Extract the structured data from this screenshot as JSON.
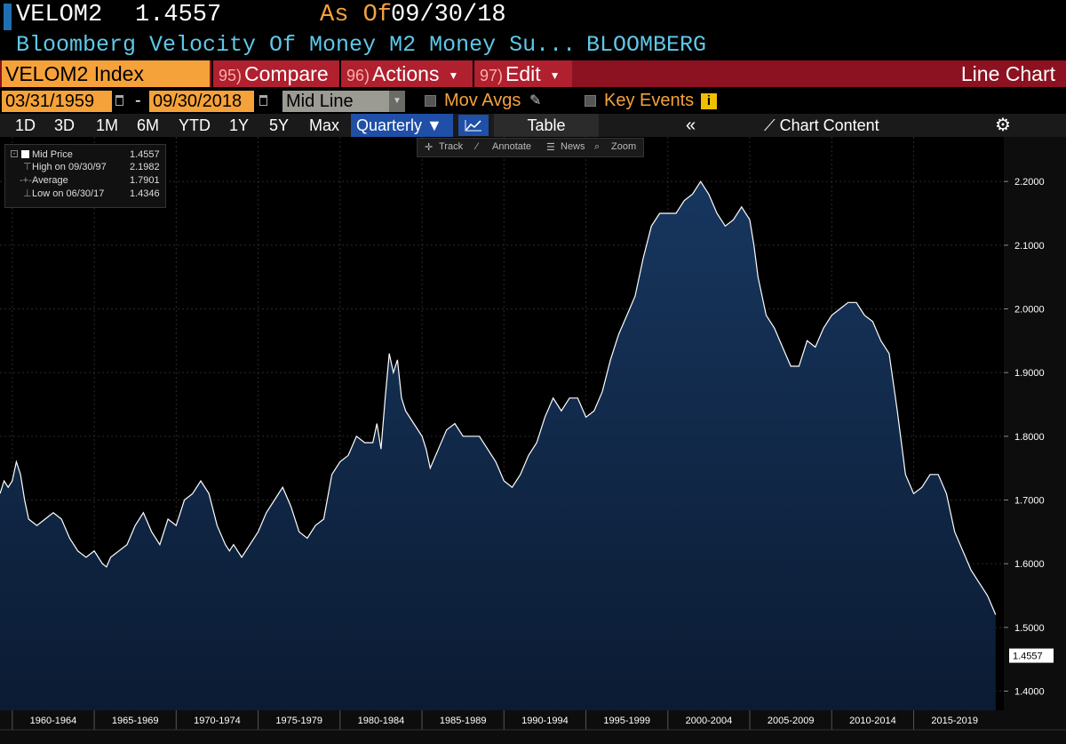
{
  "header": {
    "ticker": "VELOM2",
    "price": "1.4557",
    "as_of_label": "As Of",
    "as_of_date": "09/30/18",
    "name": "Bloomberg Velocity Of Money M2 Money Su...",
    "source": "BLOOMBERG"
  },
  "menu": {
    "security": "VELOM2 Index",
    "compare_num": "95)",
    "compare_label": "Compare",
    "actions_num": "96)",
    "actions_label": "Actions",
    "edit_num": "97)",
    "edit_label": "Edit",
    "view_label": "Line Chart"
  },
  "range": {
    "start": "03/31/1959",
    "end": "09/30/2018",
    "dash": "-",
    "mode": "Mid Line",
    "mov_avgs": "Mov Avgs",
    "key_events": "Key Events",
    "info": "i"
  },
  "periods": {
    "items": [
      "1D",
      "3D",
      "1M",
      "6M",
      "YTD",
      "1Y",
      "5Y",
      "Max"
    ],
    "frequency": "Quarterly ▼",
    "table_label": "Table",
    "collapse": "«",
    "chart_content": "Chart Content"
  },
  "tools": {
    "track": "Track",
    "annotate": "Annotate",
    "news": "News",
    "zoom": "Zoom"
  },
  "legend": {
    "mid_label": "Mid Price",
    "mid_value": "1.4557",
    "high_label": "High on 09/30/97",
    "high_value": "2.1982",
    "avg_label": "Average",
    "avg_value": "1.7901",
    "low_label": "Low on 06/30/17",
    "low_value": "1.4346"
  },
  "colors": {
    "line": "#ffffff",
    "fill_top": "#17365e",
    "fill_bottom": "#0b1b33",
    "accent_orange": "#f6a23a",
    "menu_red": "#8c1221"
  },
  "chart_data": {
    "type": "area",
    "title": "",
    "xlabel": "",
    "ylabel": "",
    "ylim": [
      1.37,
      2.27
    ],
    "xlim": [
      1959.25,
      2020.5
    ],
    "y_ticks": [
      "1.4000",
      "1.5000",
      "1.6000",
      "1.7000",
      "1.8000",
      "1.9000",
      "2.0000",
      "2.1000",
      "2.2000"
    ],
    "x_tick_labels": [
      "1960-1964",
      "1965-1969",
      "1970-1974",
      "1975-1979",
      "1980-1984",
      "1985-1989",
      "1990-1994",
      "1995-1999",
      "2000-2004",
      "2005-2009",
      "2010-2014",
      "2015-2019"
    ],
    "last_value_label": "1.4557",
    "grid": true,
    "series": [
      {
        "points": [
          [
            1959.25,
            1.71
          ],
          [
            1959.5,
            1.73
          ],
          [
            1959.75,
            1.72
          ],
          [
            1960.0,
            1.73
          ],
          [
            1960.25,
            1.76
          ],
          [
            1960.5,
            1.74
          ],
          [
            1960.75,
            1.7
          ],
          [
            1961.0,
            1.67
          ],
          [
            1961.5,
            1.66
          ],
          [
            1962.0,
            1.67
          ],
          [
            1962.5,
            1.68
          ],
          [
            1963.0,
            1.67
          ],
          [
            1963.5,
            1.64
          ],
          [
            1964.0,
            1.62
          ],
          [
            1964.5,
            1.61
          ],
          [
            1965.0,
            1.62
          ],
          [
            1965.5,
            1.6
          ],
          [
            1965.75,
            1.595
          ],
          [
            1966.0,
            1.61
          ],
          [
            1966.5,
            1.62
          ],
          [
            1967.0,
            1.63
          ],
          [
            1967.5,
            1.66
          ],
          [
            1968.0,
            1.68
          ],
          [
            1968.5,
            1.65
          ],
          [
            1969.0,
            1.63
          ],
          [
            1969.5,
            1.67
          ],
          [
            1970.0,
            1.66
          ],
          [
            1970.5,
            1.7
          ],
          [
            1971.0,
            1.71
          ],
          [
            1971.5,
            1.73
          ],
          [
            1972.0,
            1.71
          ],
          [
            1972.5,
            1.66
          ],
          [
            1973.0,
            1.63
          ],
          [
            1973.25,
            1.62
          ],
          [
            1973.5,
            1.63
          ],
          [
            1974.0,
            1.61
          ],
          [
            1974.5,
            1.63
          ],
          [
            1975.0,
            1.65
          ],
          [
            1975.5,
            1.68
          ],
          [
            1976.0,
            1.7
          ],
          [
            1976.5,
            1.72
          ],
          [
            1977.0,
            1.69
          ],
          [
            1977.5,
            1.65
          ],
          [
            1978.0,
            1.64
          ],
          [
            1978.5,
            1.66
          ],
          [
            1979.0,
            1.67
          ],
          [
            1979.5,
            1.74
          ],
          [
            1980.0,
            1.76
          ],
          [
            1980.5,
            1.77
          ],
          [
            1981.0,
            1.8
          ],
          [
            1981.5,
            1.79
          ],
          [
            1982.0,
            1.79
          ],
          [
            1982.25,
            1.82
          ],
          [
            1982.5,
            1.78
          ],
          [
            1982.75,
            1.86
          ],
          [
            1983.0,
            1.93
          ],
          [
            1983.25,
            1.9
          ],
          [
            1983.5,
            1.92
          ],
          [
            1983.75,
            1.86
          ],
          [
            1984.0,
            1.84
          ],
          [
            1984.5,
            1.82
          ],
          [
            1985.0,
            1.8
          ],
          [
            1985.25,
            1.78
          ],
          [
            1985.5,
            1.75
          ],
          [
            1986.0,
            1.78
          ],
          [
            1986.5,
            1.81
          ],
          [
            1987.0,
            1.82
          ],
          [
            1987.5,
            1.8
          ],
          [
            1988.0,
            1.8
          ],
          [
            1988.5,
            1.8
          ],
          [
            1989.0,
            1.78
          ],
          [
            1989.5,
            1.76
          ],
          [
            1990.0,
            1.73
          ],
          [
            1990.5,
            1.72
          ],
          [
            1991.0,
            1.74
          ],
          [
            1991.5,
            1.77
          ],
          [
            1992.0,
            1.79
          ],
          [
            1992.5,
            1.83
          ],
          [
            1993.0,
            1.86
          ],
          [
            1993.5,
            1.84
          ],
          [
            1994.0,
            1.86
          ],
          [
            1994.5,
            1.86
          ],
          [
            1995.0,
            1.83
          ],
          [
            1995.5,
            1.84
          ],
          [
            1996.0,
            1.87
          ],
          [
            1996.5,
            1.92
          ],
          [
            1997.0,
            1.96
          ],
          [
            1997.5,
            1.99
          ],
          [
            1998.0,
            2.02
          ],
          [
            1998.5,
            2.08
          ],
          [
            1999.0,
            2.13
          ],
          [
            1999.5,
            2.15
          ],
          [
            2000.0,
            2.15
          ],
          [
            2000.5,
            2.15
          ],
          [
            2001.0,
            2.17
          ],
          [
            2001.5,
            2.18
          ],
          [
            2002.0,
            2.2
          ],
          [
            2002.5,
            2.18
          ],
          [
            2003.0,
            2.15
          ],
          [
            2003.5,
            2.13
          ],
          [
            2004.0,
            2.14
          ],
          [
            2004.5,
            2.16
          ],
          [
            2005.0,
            2.14
          ],
          [
            2005.25,
            2.1
          ],
          [
            2005.5,
            2.05
          ],
          [
            2006.0,
            1.99
          ],
          [
            2006.5,
            1.97
          ],
          [
            2007.0,
            1.94
          ],
          [
            2007.5,
            1.91
          ],
          [
            2008.0,
            1.91
          ],
          [
            2008.5,
            1.95
          ],
          [
            2009.0,
            1.94
          ],
          [
            2009.5,
            1.97
          ],
          [
            2010.0,
            1.99
          ],
          [
            2010.5,
            2.0
          ],
          [
            2011.0,
            2.01
          ],
          [
            2011.5,
            2.01
          ],
          [
            2012.0,
            1.99
          ],
          [
            2012.5,
            1.98
          ],
          [
            2013.0,
            1.95
          ],
          [
            2013.5,
            1.93
          ],
          [
            2014.0,
            1.84
          ],
          [
            2014.5,
            1.74
          ],
          [
            2015.0,
            1.71
          ],
          [
            2015.5,
            1.72
          ],
          [
            2016.0,
            1.74
          ],
          [
            2016.5,
            1.74
          ],
          [
            2017.0,
            1.71
          ],
          [
            2017.5,
            1.65
          ],
          [
            2018.0,
            1.62
          ],
          [
            2018.5,
            1.59
          ],
          [
            2019.0,
            1.57
          ],
          [
            2019.5,
            1.55
          ],
          [
            2020.0,
            1.52
          ]
        ]
      }
    ]
  }
}
